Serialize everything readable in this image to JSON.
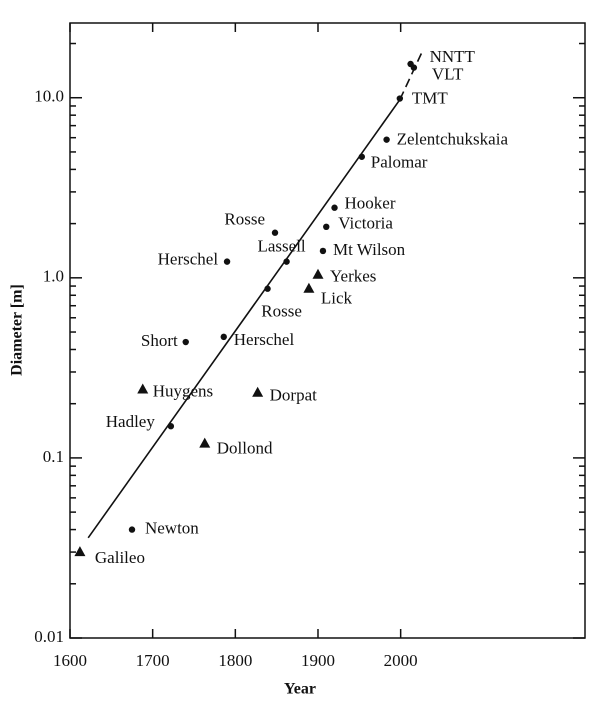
{
  "chart_data": {
    "type": "scatter",
    "x_label": "Year",
    "y_label": "Diameter [m]",
    "xlim": [
      1600,
      2223
    ],
    "ylim": [
      0.01,
      26
    ],
    "log_y": true,
    "xticks": [
      1600,
      1700,
      1800,
      1900,
      2000
    ],
    "yticks": [
      {
        "value": 10,
        "label": "10.0"
      },
      {
        "value": 1,
        "label": "1.0"
      },
      0.1,
      0.01
    ],
    "minor_yticks": [
      0.02,
      0.03,
      0.04,
      0.05,
      0.06,
      0.07,
      0.08,
      0.09,
      0.2,
      0.3,
      0.4,
      0.5,
      0.6,
      0.7,
      0.8,
      0.9,
      2,
      3,
      4,
      5,
      6,
      7,
      8,
      9,
      20
    ],
    "color": "#111111",
    "points": [
      {
        "label": "Galileo",
        "marker": "triangle",
        "x": 1612,
        "y": 0.03
      },
      {
        "label": "Newton",
        "marker": "dot",
        "x": 1675,
        "y": 0.04
      },
      {
        "label": "Hadley",
        "marker": "dot",
        "x": 1722,
        "y": 0.15
      },
      {
        "label": "Huygens",
        "marker": "triangle",
        "x": 1688,
        "y": 0.24
      },
      {
        "label": "Dollond",
        "marker": "triangle",
        "x": 1763,
        "y": 0.12
      },
      {
        "label": "Dorpat",
        "marker": "triangle",
        "x": 1827,
        "y": 0.23
      },
      {
        "label": "Short",
        "marker": "dot",
        "x": 1740,
        "y": 0.44
      },
      {
        "label": "Herschel",
        "marker": "dot",
        "x": 1786,
        "y": 0.47
      },
      {
        "label": "Herschel",
        "marker": "dot",
        "x": 1790,
        "y": 1.23
      },
      {
        "label": "Rosse",
        "marker": "dot",
        "x": 1848,
        "y": 1.78
      },
      {
        "label": "Lassell",
        "marker": "dot",
        "x": 1862,
        "y": 1.23
      },
      {
        "label": "Rosse",
        "marker": "dot",
        "x": 1839,
        "y": 0.87
      },
      {
        "label": "Lick",
        "marker": "triangle",
        "x": 1889,
        "y": 0.87
      },
      {
        "label": "Yerkes",
        "marker": "triangle",
        "x": 1900,
        "y": 1.04
      },
      {
        "label": "Mt Wilson",
        "marker": "dot",
        "x": 1906,
        "y": 1.41
      },
      {
        "label": "Victoria",
        "marker": "dot",
        "x": 1910,
        "y": 1.92
      },
      {
        "label": "Hooker",
        "marker": "dot",
        "x": 1920,
        "y": 2.45
      },
      {
        "label": "Palomar",
        "marker": "dot",
        "x": 1953,
        "y": 4.7
      },
      {
        "label": "Zelentchukskaia",
        "marker": "dot",
        "x": 1983,
        "y": 5.85
      },
      {
        "label": "TMT",
        "marker": "dot",
        "x": 1999,
        "y": 9.9
      },
      {
        "label": "VLT",
        "marker": "dot",
        "x": 2016,
        "y": 14.7
      },
      {
        "label": "NNTT",
        "marker": "dot",
        "x": 2012,
        "y": 15.4
      }
    ],
    "lines": [
      {
        "x": [
          1622,
          1999
        ],
        "y": [
          0.036,
          9.75
        ],
        "dashed": false
      },
      {
        "x": [
          1999,
          2026
        ],
        "y": [
          9.75,
          18
        ],
        "dashed": true
      }
    ]
  }
}
